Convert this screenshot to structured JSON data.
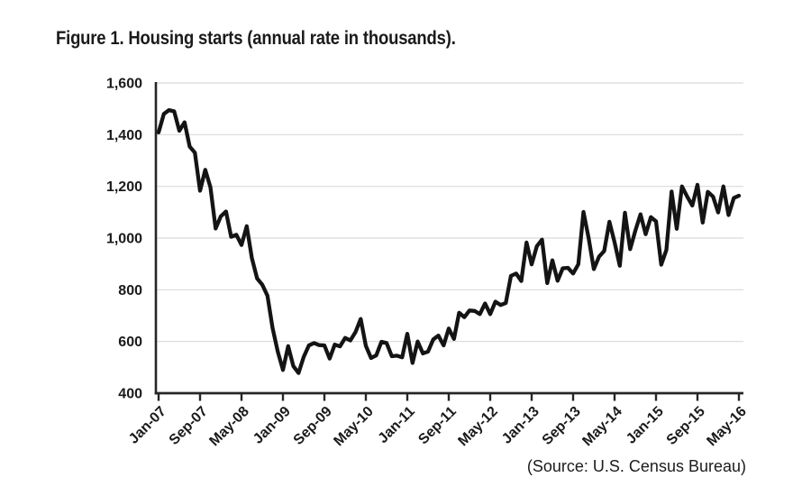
{
  "title": "Figure 1. Housing starts (annual rate in thousands).",
  "source": "(Source: U.S. Census Bureau)",
  "chart_data": {
    "type": "line",
    "title": "Figure 1. Housing starts (annual rate in thousands).",
    "xlabel": "",
    "ylabel": "",
    "x_start": "Jan-07",
    "x_end": "May-16",
    "frequency": "monthly",
    "x_tick_interval_months": 8,
    "x_tick_labels": [
      "Jan-07",
      "Sep-07",
      "May-08",
      "Jan-09",
      "Sep-09",
      "May-10",
      "Jan-11",
      "Sep-11",
      "May-12",
      "Jan-13",
      "Sep-13",
      "May-14",
      "Jan-15",
      "Sep-15",
      "May-16"
    ],
    "y_ticks": [
      400,
      600,
      800,
      1000,
      1200,
      1400,
      1600
    ],
    "y_tick_labels": [
      "400",
      "600",
      "800",
      "1,000",
      "1,200",
      "1,400",
      "1,600"
    ],
    "ylim": [
      400,
      1600
    ],
    "grid": "horizontal",
    "legend": "none",
    "colors": {
      "line": "#141414",
      "axis": "#262626",
      "grid": "#d9d9d9",
      "text": "#1a1a1a"
    },
    "series": [
      {
        "name": "Housing starts (annual rate, thousands)",
        "values": [
          1409,
          1480,
          1495,
          1490,
          1415,
          1448,
          1354,
          1330,
          1183,
          1264,
          1197,
          1037,
          1084,
          1103,
          1005,
          1013,
          973,
          1046,
          923,
          844,
          820,
          777,
          652,
          560,
          490,
          582,
          505,
          478,
          540,
          585,
          594,
          586,
          585,
          534,
          588,
          581,
          614,
          604,
          636,
          687,
          583,
          536,
          546,
          599,
          594,
          543,
          545,
          539,
          630,
          517,
          600,
          554,
          561,
          608,
          623,
          585,
          650,
          610,
          711,
          694,
          720,
          718,
          706,
          747,
          706,
          754,
          741,
          749,
          854,
          863,
          834,
          983,
          898,
          969,
          994,
          826,
          914,
          835,
          883,
          885,
          863,
          899,
          1101,
          999,
          880,
          928,
          950,
          1063,
          984,
          893,
          1098,
          957,
          1028,
          1092,
          1015,
          1081,
          1065,
          897,
          954,
          1180,
          1036,
          1200,
          1161,
          1126,
          1206,
          1060,
          1179,
          1160,
          1099,
          1200,
          1089,
          1155,
          1164
        ]
      }
    ]
  }
}
